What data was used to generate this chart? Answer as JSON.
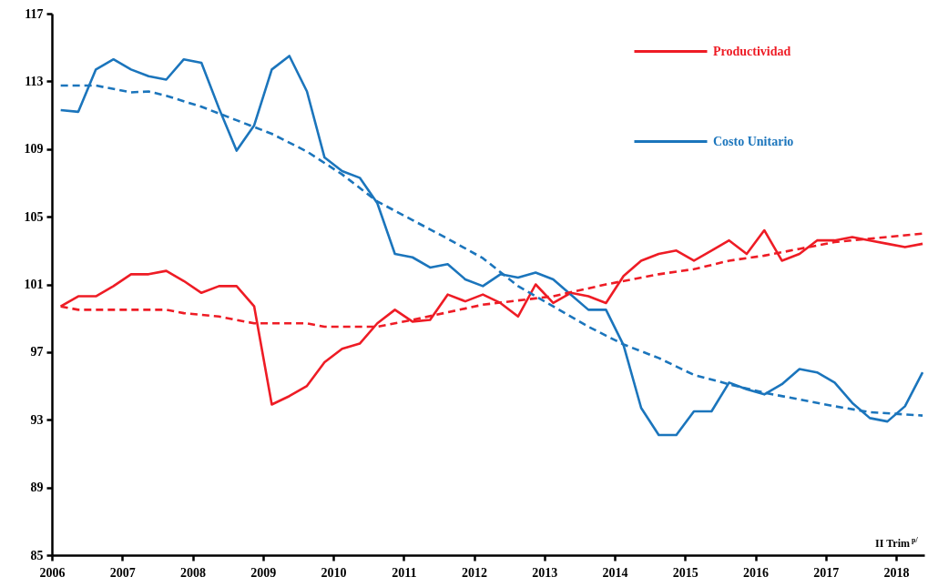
{
  "chart_data": {
    "type": "line",
    "x": [
      2006.125,
      2006.375,
      2006.625,
      2006.875,
      2007.125,
      2007.375,
      2007.625,
      2007.875,
      2008.125,
      2008.375,
      2008.625,
      2008.875,
      2009.125,
      2009.375,
      2009.625,
      2009.875,
      2010.125,
      2010.375,
      2010.625,
      2010.875,
      2011.125,
      2011.375,
      2011.625,
      2011.875,
      2012.125,
      2012.375,
      2012.625,
      2012.875,
      2013.125,
      2013.375,
      2013.625,
      2013.875,
      2014.125,
      2014.375,
      2014.625,
      2014.875,
      2015.125,
      2015.375,
      2015.625,
      2015.875,
      2016.125,
      2016.375,
      2016.625,
      2016.875,
      2017.125,
      2017.375,
      2017.625,
      2017.875,
      2018.125,
      2018.375
    ],
    "series": [
      {
        "name": "Productividad",
        "color": "#ee1c25",
        "line_style": "solid",
        "values": [
          99.7,
          100.3,
          100.3,
          100.9,
          101.6,
          101.6,
          101.8,
          101.2,
          100.5,
          100.9,
          100.9,
          99.7,
          93.9,
          94.4,
          95.0,
          96.4,
          97.2,
          97.5,
          98.7,
          99.5,
          98.8,
          98.9,
          100.4,
          100.0,
          100.4,
          99.9,
          99.1,
          101.0,
          99.9,
          100.5,
          100.3,
          99.9,
          101.5,
          102.4,
          102.8,
          103.0,
          102.4,
          103.0,
          103.6,
          102.8,
          104.2,
          102.4,
          102.8,
          103.6,
          103.6,
          103.8,
          103.6,
          103.4,
          103.2,
          103.4
        ]
      },
      {
        "name": "Costo Unitario",
        "color": "#1b75bc",
        "line_style": "solid",
        "values": [
          111.3,
          111.2,
          113.7,
          114.3,
          113.7,
          113.3,
          113.1,
          114.3,
          114.1,
          111.4,
          108.9,
          110.4,
          113.7,
          114.5,
          112.4,
          108.5,
          107.7,
          107.3,
          105.8,
          102.8,
          102.6,
          102.0,
          102.2,
          101.3,
          100.9,
          101.6,
          101.4,
          101.7,
          101.3,
          100.4,
          99.5,
          99.5,
          97.4,
          93.7,
          92.1,
          92.1,
          93.5,
          93.5,
          95.2,
          94.8,
          94.5,
          95.1,
          96.0,
          95.8,
          95.2,
          94.0,
          93.1,
          92.9,
          93.8,
          95.8
        ]
      },
      {
        "type": "line",
        "color": "#ee1c25",
        "line_style": "dashed",
        "x": [
          2006.125,
          2006.375,
          2007.625,
          2007.875,
          2008.375,
          2008.875,
          2009.625,
          2009.875,
          2010.625,
          2011.125,
          2012.125,
          2013.125,
          2013.875,
          2014.625,
          2015.125,
          2015.625,
          2016.125,
          2016.625,
          2017.125,
          2017.625,
          2018.375
        ],
        "values": [
          99.7,
          99.5,
          99.5,
          99.3,
          99.1,
          98.7,
          98.7,
          98.5,
          98.5,
          98.9,
          99.8,
          100.3,
          101.0,
          101.6,
          101.9,
          102.4,
          102.7,
          103.1,
          103.5,
          103.7,
          104.0
        ]
      },
      {
        "type": "line",
        "color": "#1b75bc",
        "line_style": "dashed",
        "x": [
          2006.125,
          2006.625,
          2007.125,
          2007.375,
          2007.625,
          2008.125,
          2008.625,
          2009.125,
          2009.625,
          2010.125,
          2010.625,
          2011.125,
          2011.625,
          2012.125,
          2012.625,
          2013.125,
          2013.625,
          2014.125,
          2014.625,
          2015.125,
          2015.625,
          2016.125,
          2016.625,
          2017.125,
          2017.625,
          2018.375
        ],
        "values": [
          112.75,
          112.75,
          112.35,
          112.4,
          112.15,
          111.5,
          110.7,
          109.9,
          108.85,
          107.5,
          105.9,
          104.8,
          103.7,
          102.55,
          100.9,
          99.7,
          98.5,
          97.45,
          96.65,
          95.65,
          95.1,
          94.6,
          94.2,
          93.8,
          93.45,
          93.25
        ]
      }
    ],
    "xlim": [
      2006,
      2018.4
    ],
    "xticks": [
      2006,
      2007,
      2008,
      2009,
      2010,
      2011,
      2012,
      2013,
      2014,
      2015,
      2016,
      2017,
      2018
    ],
    "ylim": [
      85,
      117
    ],
    "yticks": [
      85,
      89,
      93,
      97,
      101,
      105,
      109,
      113,
      117
    ],
    "legend": "top right",
    "annotations": [
      "II Trim $^{p/}$"
    ]
  }
}
